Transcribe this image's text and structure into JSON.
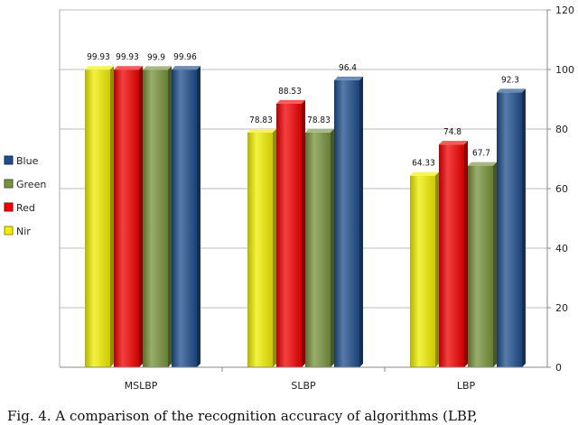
{
  "chart_data": {
    "type": "bar",
    "categories": [
      "MSLBP",
      "SLBP",
      "LBP"
    ],
    "series": [
      {
        "name": "Nir",
        "color": "#f0ee00",
        "values": [
          99.93,
          78.83,
          64.33
        ],
        "labels": [
          "99.93",
          "78.83",
          "64.33"
        ]
      },
      {
        "name": "Red",
        "color": "#f00000",
        "values": [
          99.93,
          88.53,
          74.8
        ],
        "labels": [
          "99.93",
          "88.53",
          "74.8"
        ]
      },
      {
        "name": "Green",
        "color": "#77933c",
        "values": [
          99.9,
          78.83,
          67.7
        ],
        "labels": [
          "99.9",
          "78.83",
          "67.7"
        ]
      },
      {
        "name": "Blue",
        "color": "#1f4e8c",
        "values": [
          99.96,
          96.4,
          92.3
        ],
        "labels": [
          "99.96",
          "96.4",
          "92.3"
        ]
      }
    ],
    "legend_order": [
      "Blue",
      "Green",
      "Red",
      "Nir"
    ],
    "yticks": [
      "0",
      "20",
      "40",
      "60",
      "80",
      "100",
      "120"
    ],
    "ylim": [
      0,
      120
    ],
    "grid": "horizontal",
    "legend_position": "left",
    "title": "",
    "xlabel": "",
    "ylabel": ""
  },
  "caption": "Fig. 4. A comparison of the recognition accuracy of algorithms (LBP,"
}
